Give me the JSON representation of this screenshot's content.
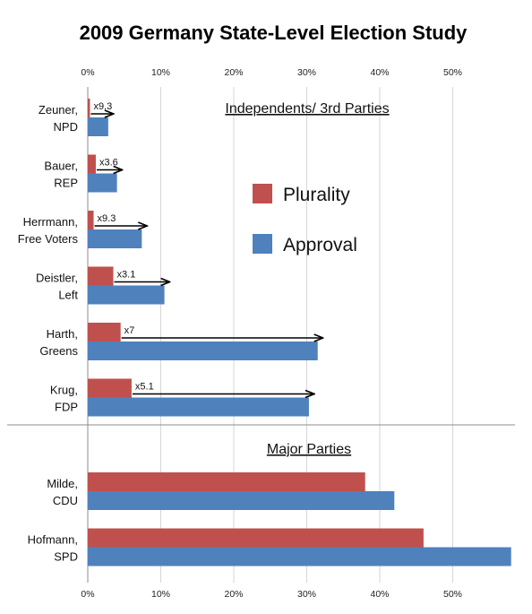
{
  "chart_data": {
    "type": "bar",
    "orientation": "horizontal",
    "title": "2009 Germany State-Level Election Study",
    "xlabel": "",
    "ylabel": "",
    "xlim": [
      0,
      58
    ],
    "ticks": [
      "0%",
      "10%",
      "20%",
      "30%",
      "40%",
      "50%"
    ],
    "tick_values": [
      0,
      10,
      20,
      30,
      40,
      50
    ],
    "grid": true,
    "legend_position": "right-center",
    "series": [
      {
        "name": "Plurality",
        "color": "#c0504d"
      },
      {
        "name": "Approval",
        "color": "#4f81bd"
      }
    ],
    "groups": [
      {
        "title": "Independents/ 3rd Parties",
        "categories": [
          {
            "line1": "Zeuner,",
            "line2": "NPD",
            "plurality": 0.3,
            "approval": 2.8,
            "multiplier": "x9.3"
          },
          {
            "line1": "Bauer,",
            "line2": "REP",
            "plurality": 1.1,
            "approval": 4.0,
            "multiplier": "x3.6"
          },
          {
            "line1": "Herrmann,",
            "line2": "Free Voters",
            "plurality": 0.8,
            "approval": 7.4,
            "multiplier": "x9.3"
          },
          {
            "line1": "Deistler,",
            "line2": "Left",
            "plurality": 3.5,
            "approval": 10.5,
            "multiplier": "x3.1"
          },
          {
            "line1": "Harth,",
            "line2": "Greens",
            "plurality": 4.5,
            "approval": 31.5,
            "multiplier": "x7"
          },
          {
            "line1": "Krug,",
            "line2": "FDP",
            "plurality": 6.0,
            "approval": 30.3,
            "multiplier": "x5.1"
          }
        ]
      },
      {
        "title": "Major Parties",
        "categories": [
          {
            "line1": "Milde,",
            "line2": "CDU",
            "plurality": 38.0,
            "approval": 42.0
          },
          {
            "line1": "Hofmann,",
            "line2": "SPD",
            "plurality": 46.0,
            "approval": 58.0
          }
        ]
      }
    ]
  }
}
